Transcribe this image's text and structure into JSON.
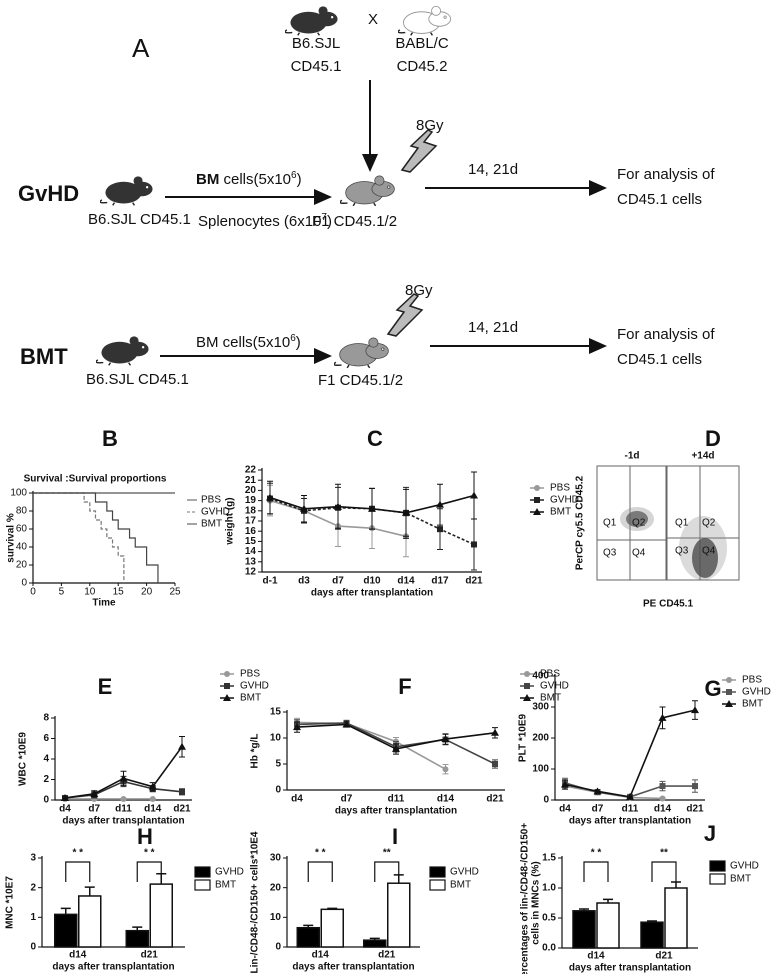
{
  "diagram": {
    "panel": "A",
    "top": {
      "left_strain": "B6.SJL",
      "left_marker": "CD45.1",
      "cross": "X",
      "right_strain": "BABL/C",
      "right_marker": "CD45.2"
    },
    "gvhd": {
      "label": "GvHD",
      "donor": "B6.SJL  CD45.1",
      "bm_bold": "BM",
      "bm_text": " cells(5x10",
      "bm_sup": "6",
      "bm_end": ")",
      "spleen_text": "Splenocytes (6x10",
      "spleen_sup": "7",
      "spleen_end": ")",
      "recipient": "F1   CD45.1/2",
      "dose": "8Gy",
      "time": "14, 21d",
      "analysis": [
        "For analysis of",
        "CD45.1 cells"
      ]
    },
    "bmt": {
      "label": "BMT",
      "donor": "B6.SJL  CD45.1",
      "bm_text": "BM cells(5x10",
      "bm_sup": "6",
      "bm_end": ")",
      "recipient": "F1  CD45.1/2",
      "dose": "8Gy",
      "time": "14, 21d",
      "analysis": [
        "For analysis of",
        "CD45.1 cells"
      ]
    }
  },
  "flow": {
    "panel": "D",
    "timepoints": [
      "-1d",
      "+14d"
    ],
    "quadrants": [
      "Q1",
      "Q2",
      "Q3",
      "Q4"
    ],
    "ylabel": "PerCP cy5.5  CD45.2",
    "xlabel": "PE   CD45.1"
  },
  "chart_data": [
    {
      "type": "step",
      "panel": "B",
      "title": "Survival :Survival proportions",
      "xlabel": "Time",
      "ylabel": "survival %",
      "xlim": [
        0,
        25
      ],
      "xticks": [
        0,
        5,
        10,
        15,
        20,
        25
      ],
      "ylim": [
        0,
        100
      ],
      "yticks": [
        0,
        20,
        40,
        60,
        80,
        100
      ],
      "series": [
        {
          "name": "PBS",
          "color": "#555555",
          "x": [
            0,
            25
          ],
          "values": [
            100,
            100
          ]
        },
        {
          "name": "GVHD",
          "color": "#777777",
          "dash": true,
          "x": [
            0,
            9,
            10,
            11,
            12,
            13,
            14,
            15,
            16
          ],
          "values": [
            100,
            90,
            80,
            70,
            60,
            50,
            40,
            30,
            0
          ]
        },
        {
          "name": "BMT",
          "color": "#444444",
          "x": [
            0,
            11,
            13,
            14,
            15,
            17,
            18,
            20,
            22
          ],
          "values": [
            100,
            90,
            80,
            70,
            60,
            50,
            40,
            20,
            0
          ]
        }
      ]
    },
    {
      "type": "line",
      "panel": "C",
      "xlabel": "days after transplantation",
      "ylabel": "weight (g)",
      "categories": [
        "d-1",
        "d3",
        "d7",
        "d10",
        "d14",
        "d17",
        "d21"
      ],
      "ylim": [
        12,
        22
      ],
      "yticks": [
        12,
        13,
        14,
        15,
        16,
        17,
        18,
        19,
        20,
        21,
        22
      ],
      "series": [
        {
          "name": "PBS",
          "color": "#999999",
          "marker": "circle",
          "values": [
            19,
            18,
            16.5,
            16.3,
            15.5,
            null,
            null
          ],
          "errors": [
            1.5,
            1.2,
            2,
            2,
            2,
            null,
            null
          ]
        },
        {
          "name": "GVHD",
          "color": "#222222",
          "marker": "square",
          "dash": true,
          "values": [
            19.2,
            18,
            18.3,
            18.2,
            17.8,
            16.2,
            14.7
          ],
          "errors": [
            1.5,
            1.2,
            2,
            2,
            2.5,
            2,
            2.5
          ]
        },
        {
          "name": "BMT",
          "color": "#111111",
          "marker": "triangle",
          "values": [
            19.3,
            18.2,
            18.4,
            18.2,
            17.8,
            18.6,
            19.5
          ],
          "errors": [
            1.6,
            1.3,
            2.2,
            2,
            2.3,
            2,
            2.3
          ]
        }
      ]
    },
    {
      "type": "line",
      "panel": "E",
      "xlabel": "days after transplantation",
      "ylabel": "WBC *10E9",
      "categories": [
        "d4",
        "d7",
        "d11",
        "d14",
        "d21"
      ],
      "ylim": [
        0,
        8
      ],
      "yticks": [
        0,
        2,
        4,
        6,
        8
      ],
      "series": [
        {
          "name": "PBS",
          "color": "#999999",
          "marker": "circle",
          "values": [
            0.1,
            0.1,
            0.1,
            0.1,
            null
          ],
          "errors": [
            0.05,
            0.05,
            0.05,
            0.05,
            null
          ]
        },
        {
          "name": "GVHD",
          "color": "#333333",
          "marker": "square",
          "values": [
            0.2,
            0.5,
            1.8,
            1.1,
            0.8
          ],
          "errors": [
            0.1,
            0.3,
            0.5,
            0.3,
            0.3
          ]
        },
        {
          "name": "BMT",
          "color": "#111111",
          "marker": "triangle",
          "values": [
            0.2,
            0.6,
            2.1,
            1.3,
            5.2
          ],
          "errors": [
            0.1,
            0.3,
            0.7,
            0.4,
            1
          ]
        }
      ]
    },
    {
      "type": "line",
      "panel": "F",
      "xlabel": "days after transplantation",
      "ylabel": "Hb *g/L",
      "categories": [
        "d4",
        "d7",
        "d11",
        "d14",
        "d21"
      ],
      "ylim": [
        0,
        15
      ],
      "yticks": [
        0,
        5,
        10,
        15
      ],
      "series": [
        {
          "name": "PBS",
          "color": "#999999",
          "marker": "circle",
          "values": [
            13,
            12.8,
            9.3,
            4,
            null
          ],
          "errors": [
            0.8,
            0.5,
            0.8,
            0.9,
            null
          ]
        },
        {
          "name": "GVHD",
          "color": "#444444",
          "marker": "square",
          "values": [
            12.6,
            12.9,
            8.3,
            9.7,
            5
          ],
          "errors": [
            0.9,
            0.5,
            1,
            1,
            0.8
          ]
        },
        {
          "name": "BMT",
          "color": "#111111",
          "marker": "triangle",
          "values": [
            12.1,
            12.6,
            7.9,
            9.8,
            11
          ],
          "errors": [
            1,
            0.5,
            1,
            1,
            1
          ]
        }
      ]
    },
    {
      "type": "line",
      "panel": "G",
      "xlabel": "days after transplantation",
      "ylabel": "PLT *10E9",
      "categories": [
        "d4",
        "d7",
        "d11",
        "d14",
        "d21"
      ],
      "ylim": [
        0,
        400
      ],
      "yticks": [
        0,
        100,
        200,
        300,
        400
      ],
      "series": [
        {
          "name": "PBS",
          "color": "#999999",
          "marker": "circle",
          "values": [
            45,
            25,
            8,
            5,
            null
          ],
          "errors": [
            10,
            5,
            3,
            3,
            null
          ]
        },
        {
          "name": "GVHD",
          "color": "#555555",
          "marker": "square",
          "values": [
            55,
            25,
            10,
            45,
            45
          ],
          "errors": [
            15,
            5,
            3,
            15,
            20
          ]
        },
        {
          "name": "BMT",
          "color": "#111111",
          "marker": "triangle",
          "values": [
            50,
            28,
            10,
            265,
            290
          ],
          "errors": [
            15,
            5,
            3,
            35,
            30
          ]
        }
      ]
    },
    {
      "type": "bar",
      "panel": "H",
      "xlabel": "days after transplantation",
      "ylabel": "MNC *10E7",
      "categories": [
        "d14",
        "d21"
      ],
      "ylim": [
        0,
        3
      ],
      "yticks": [
        0,
        1,
        2,
        3
      ],
      "significance": [
        "* *",
        "* *"
      ],
      "series": [
        {
          "name": "GVHD",
          "color": "#000000",
          "values": [
            1.1,
            0.55
          ],
          "errors": [
            0.2,
            0.12
          ]
        },
        {
          "name": "BMT",
          "color": "#ffffff",
          "values": [
            1.72,
            2.12
          ],
          "errors": [
            0.3,
            0.35
          ]
        }
      ]
    },
    {
      "type": "bar",
      "panel": "I",
      "xlabel": "days after transplantation",
      "ylabel": "Lin-/CD48-/CD150+ cells*10E4",
      "categories": [
        "d14",
        "d21"
      ],
      "ylim": [
        0,
        30
      ],
      "yticks": [
        0,
        10,
        20,
        30
      ],
      "significance": [
        "* *",
        "**"
      ],
      "series": [
        {
          "name": "GVHD",
          "color": "#000000",
          "values": [
            6.5,
            2.3
          ],
          "errors": [
            0.8,
            0.6
          ]
        },
        {
          "name": "BMT",
          "color": "#ffffff",
          "values": [
            12.7,
            21.5
          ],
          "errors": [
            0.3,
            2.8
          ]
        }
      ]
    },
    {
      "type": "bar",
      "panel": "J",
      "xlabel": "days after transplantation",
      "ylabel": [
        "percentages of lin-/CD48-/CD150+",
        "cells in MNCs (%)"
      ],
      "categories": [
        "d14",
        "d21"
      ],
      "ylim": [
        0,
        1.5
      ],
      "yticks": [
        {
          "value": 0,
          "label": "0.0"
        },
        {
          "value": 0.5,
          "label": "0.5"
        },
        {
          "value": 1,
          "label": "1.0"
        },
        {
          "value": 1.5,
          "label": "1.5"
        }
      ],
      "significance": [
        "* *",
        "**"
      ],
      "series": [
        {
          "name": "GVHD",
          "color": "#000000",
          "values": [
            0.62,
            0.43
          ],
          "errors": [
            0.03,
            0.02
          ]
        },
        {
          "name": "BMT",
          "color": "#ffffff",
          "values": [
            0.75,
            1
          ],
          "errors": [
            0.06,
            0.1
          ]
        }
      ]
    }
  ]
}
